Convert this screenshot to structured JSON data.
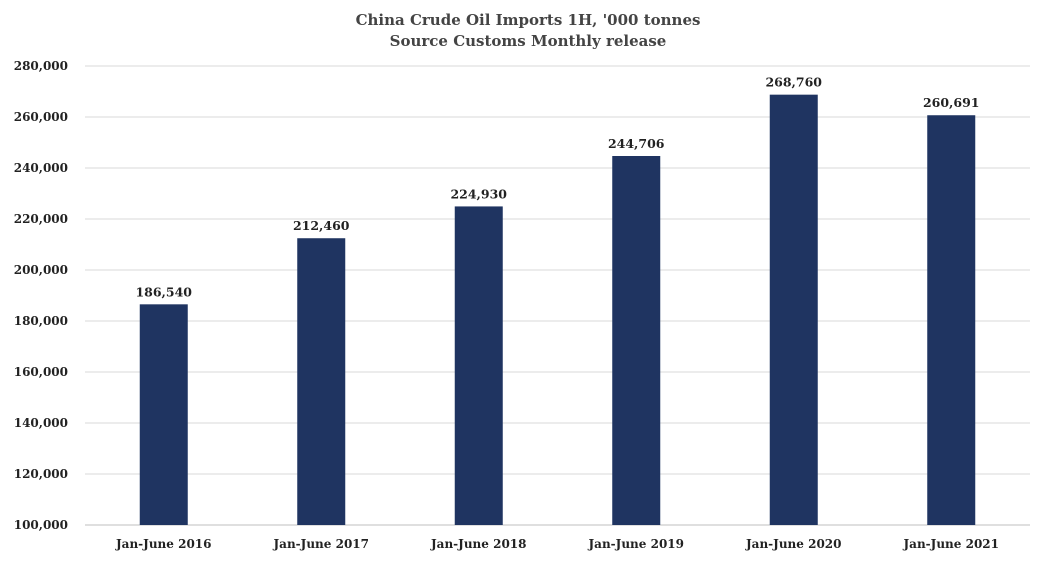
{
  "chart_data": {
    "type": "bar",
    "title": "China Crude Oil Imports 1H, '000 tonnes",
    "subtitle": "Source Customs Monthly release",
    "xlabel": "",
    "ylabel": "",
    "categories": [
      "Jan-June 2016",
      "Jan-June 2017",
      "Jan-June 2018",
      "Jan-June 2019",
      "Jan-June 2020",
      "Jan-June 2021"
    ],
    "values": [
      186540,
      212460,
      224930,
      244706,
      268760,
      260691
    ],
    "data_labels": [
      "186,540",
      "212,460",
      "224,930",
      "244,706",
      "268,760",
      "260,691"
    ],
    "ylim": [
      100000,
      280000
    ],
    "yticks": [
      100000,
      120000,
      140000,
      160000,
      180000,
      200000,
      220000,
      240000,
      260000,
      280000
    ],
    "ytick_labels": [
      "100,000",
      "120,000",
      "140,000",
      "160,000",
      "180,000",
      "200,000",
      "220,000",
      "240,000",
      "260,000",
      "280,000"
    ],
    "grid": true,
    "legend": "none",
    "bar_color": "#1f3461"
  }
}
